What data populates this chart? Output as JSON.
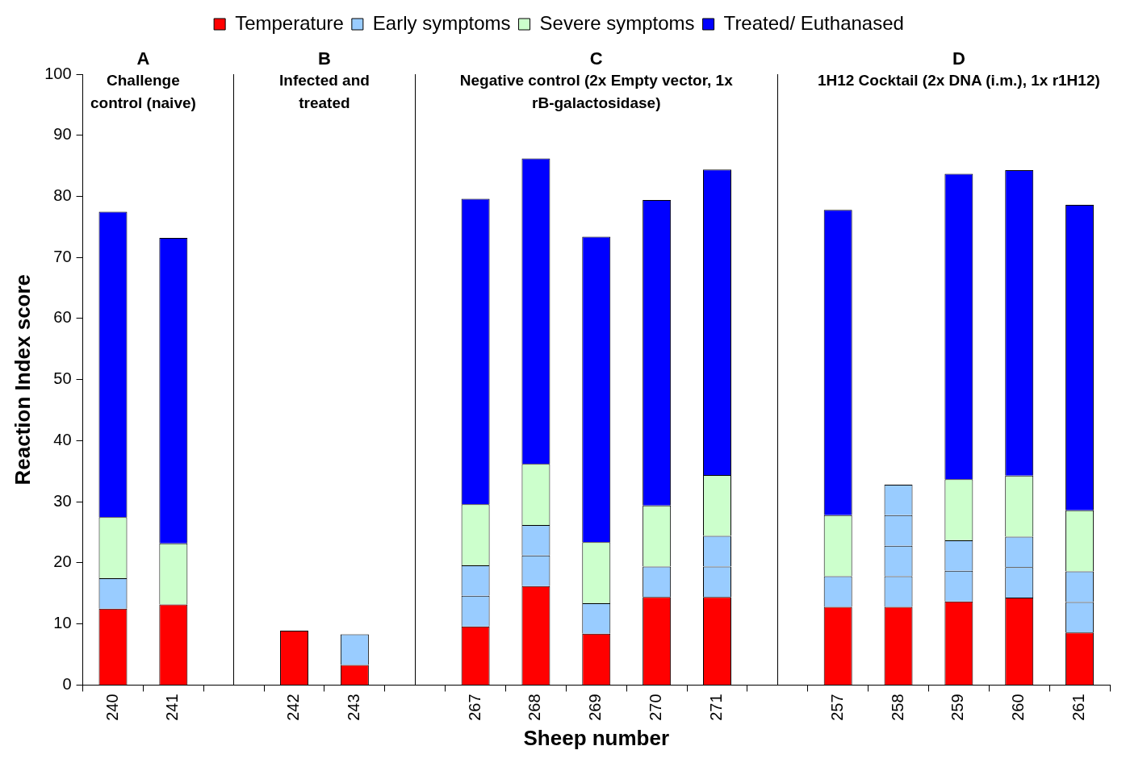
{
  "chart_data": {
    "type": "bar",
    "stacked": true,
    "xlabel": "Sheep number",
    "ylabel": "Reaction Index score",
    "categories": [
      "240",
      "241",
      null,
      "242",
      "243",
      null,
      "267",
      "268",
      "269",
      "270",
      "271",
      null,
      "257",
      "258",
      "259",
      "260",
      "261"
    ],
    "series": [
      {
        "name": "Temperature",
        "color": "#ff0000",
        "values": [
          12.5,
          13.2,
          null,
          8.9,
          3.3,
          null,
          9.6,
          16.2,
          8.4,
          14.4,
          14.4,
          null,
          12.8,
          12.8,
          13.7,
          14.3,
          8.6
        ]
      },
      {
        "name": "Early symptoms",
        "color": "#99ccff",
        "values": [
          5,
          null,
          null,
          null,
          5,
          null,
          5,
          5,
          5,
          5,
          5,
          null,
          5,
          5,
          5,
          5,
          5
        ]
      },
      {
        "color": "#99ccff",
        "values": [
          null,
          null,
          null,
          null,
          null,
          null,
          5,
          5,
          null,
          null,
          5,
          null,
          null,
          5,
          5,
          5,
          5
        ]
      },
      {
        "color": "#99ccff",
        "values": [
          null,
          null,
          null,
          null,
          null,
          null,
          null,
          null,
          null,
          null,
          null,
          null,
          null,
          5,
          null,
          null,
          null
        ]
      },
      {
        "color": "#99ccff",
        "values": [
          null,
          null,
          null,
          null,
          null,
          null,
          null,
          null,
          null,
          null,
          null,
          null,
          null,
          5,
          null,
          null,
          null
        ]
      },
      {
        "name": "Severe symptoms",
        "color": "#ccffcc",
        "values": [
          10,
          10,
          null,
          null,
          null,
          null,
          10,
          10,
          10,
          10,
          10,
          null,
          10,
          null,
          10,
          10,
          10
        ]
      },
      {
        "name": "Treated/ Euthanased",
        "color": "#0000ff",
        "values": [
          50,
          50,
          null,
          null,
          null,
          null,
          50,
          50,
          50,
          50,
          50,
          null,
          50,
          null,
          50,
          50,
          50
        ]
      }
    ],
    "ylim": [
      0,
      100
    ],
    "yticks": [
      0,
      10,
      20,
      30,
      40,
      50,
      60,
      70,
      80,
      90,
      100
    ],
    "legend": "top",
    "grid": false,
    "annotations": [
      "A",
      "Challenge control (naive)",
      "B",
      "Infected and treated",
      "C",
      "Negative control (2x Empty vector, 1x rB-galactosidase)",
      "D",
      "1H12 Cocktail (2x DNA (i.m.), 1x r1H12)"
    ]
  }
}
